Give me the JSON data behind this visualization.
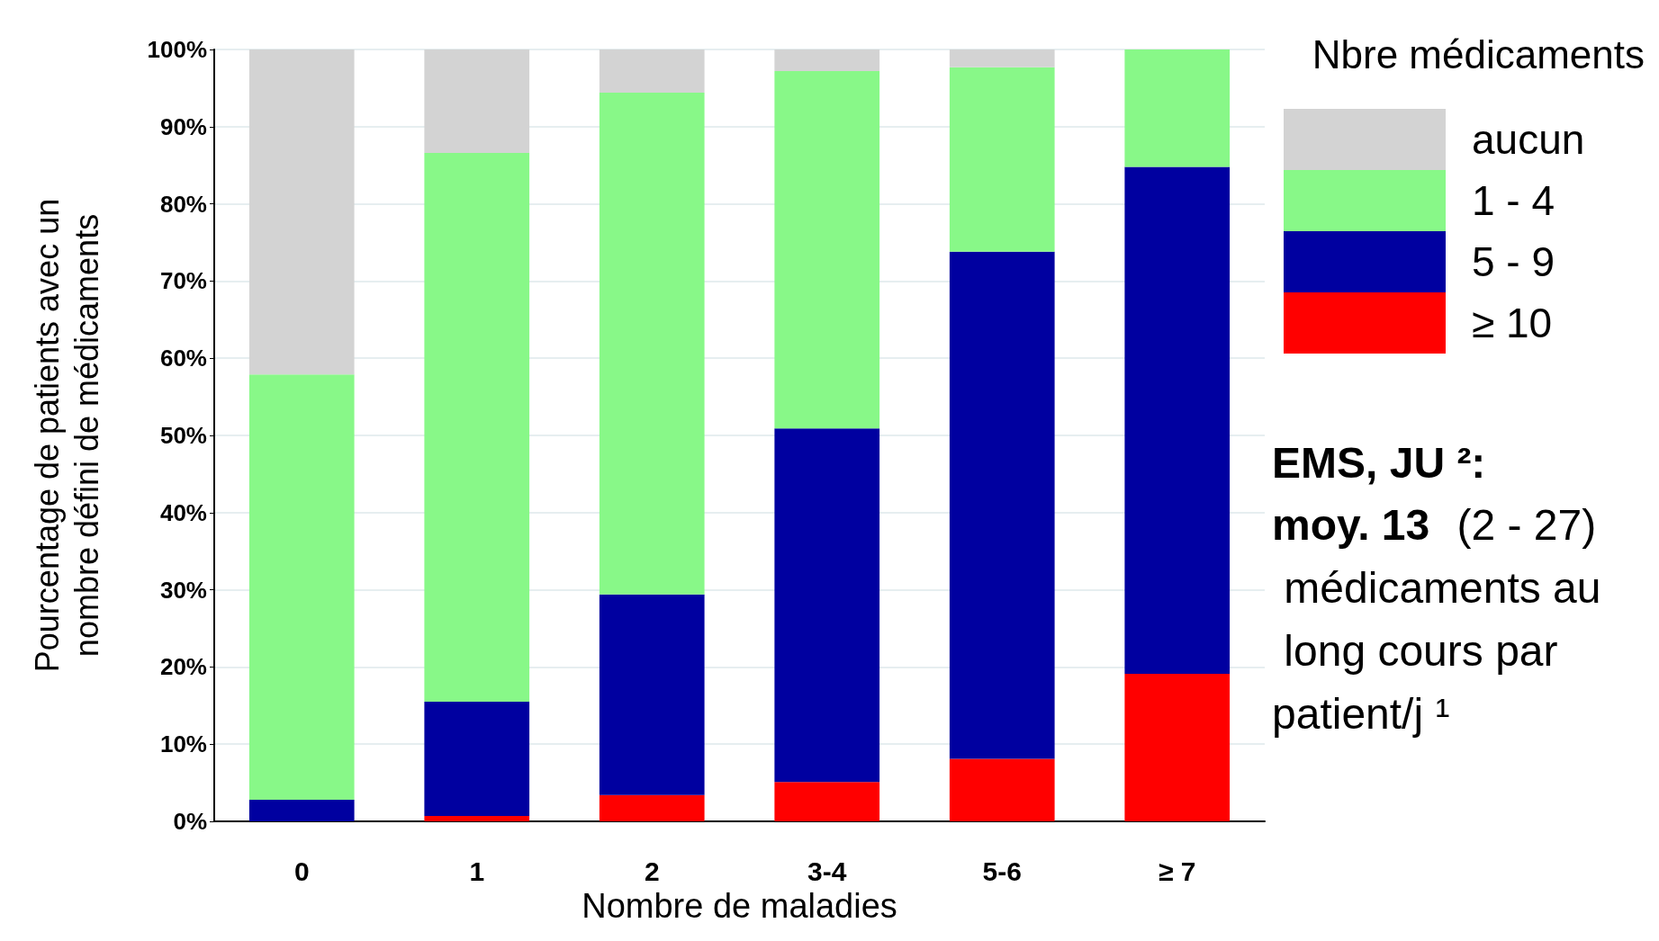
{
  "chart_data": {
    "type": "bar",
    "stacked": true,
    "xlabel": "Nombre de maladies",
    "ylabel": "Pourcentage de patients avec un\nnombre défini de médicaments",
    "legend_title": "Nbre médicaments",
    "legend": "top right",
    "grid": "y",
    "categories": [
      "0",
      "1",
      "2",
      "3-4",
      "5-6",
      "≥ 7"
    ],
    "series": [
      {
        "name": "≥ 10",
        "color": "#ff0000",
        "values": [
          0,
          0.7,
          3.4,
          5.1,
          8.1,
          19.1
        ]
      },
      {
        "name": "5 - 9",
        "color": "#0000a0",
        "values": [
          2.8,
          14.8,
          26.0,
          45.8,
          65.7,
          65.7
        ]
      },
      {
        "name": "1 - 4",
        "color": "#88f888",
        "values": [
          55.1,
          71.1,
          65.0,
          46.3,
          23.9,
          15.2
        ]
      },
      {
        "name": "aucun",
        "color": "#d3d3d3",
        "values": [
          42.1,
          13.4,
          5.6,
          2.8,
          2.3,
          0
        ]
      }
    ],
    "ylim": [
      0,
      100
    ],
    "yticks": [
      {
        "value": 0,
        "label": "0%"
      },
      {
        "value": 10,
        "label": "10%"
      },
      {
        "value": 20,
        "label": "20%"
      },
      {
        "value": 30,
        "label": "30%"
      },
      {
        "value": 40,
        "label": "40%"
      },
      {
        "value": 50,
        "label": "50%"
      },
      {
        "value": 60,
        "label": "60%"
      },
      {
        "value": 70,
        "label": "70%"
      },
      {
        "value": 80,
        "label": "80%"
      },
      {
        "value": 90,
        "label": "90%"
      },
      {
        "value": 100,
        "label": "100%"
      }
    ],
    "annotations": [
      "EMS, JU ²:",
      "moy. 13",
      "(2 - 27) médicaments au long cours par patient/j ¹"
    ]
  }
}
